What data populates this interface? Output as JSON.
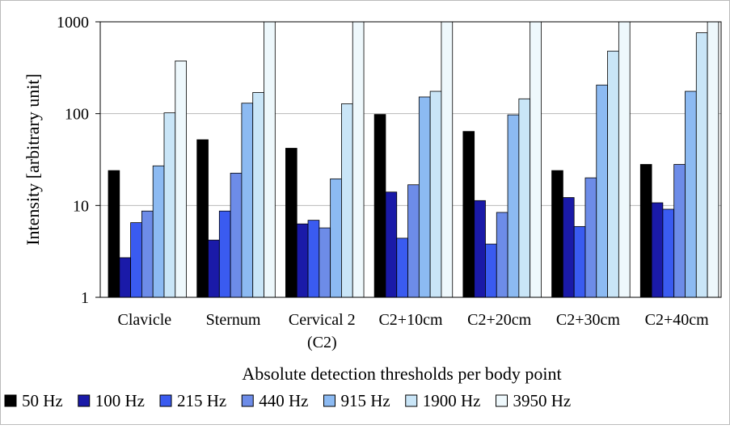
{
  "chart_data": {
    "type": "bar",
    "title": "",
    "xlabel": "Absolute detection thresholds per body point",
    "ylabel": "Intensity [arbitrary unit]",
    "yscale": "log",
    "ylim": [
      1,
      1000
    ],
    "yticks": [
      "1",
      "10",
      "100",
      "1000"
    ],
    "grid": "horizontal major gridlines",
    "legend_position": "bottom",
    "categories": [
      [
        "Clavicle"
      ],
      [
        "Sternum"
      ],
      [
        "Cervical 2",
        "(C2)"
      ],
      [
        "C2+10cm"
      ],
      [
        "C2+20cm"
      ],
      [
        "C2+30cm"
      ],
      [
        "C2+40cm"
      ]
    ],
    "series": [
      {
        "name": "50 Hz",
        "color": "#000000",
        "values": [
          24,
          52,
          42,
          98,
          64,
          24,
          28
        ]
      },
      {
        "name": "100 Hz",
        "color": "#1a1aa8",
        "values": [
          2.7,
          4.2,
          6.3,
          14,
          11.3,
          12.2,
          10.7
        ]
      },
      {
        "name": "215 Hz",
        "color": "#3a5bf0",
        "values": [
          6.5,
          8.7,
          6.9,
          4.4,
          3.8,
          5.9,
          9.1
        ]
      },
      {
        "name": "440 Hz",
        "color": "#6d8ce8",
        "values": [
          8.7,
          22.5,
          5.7,
          16.8,
          8.4,
          20,
          28
        ]
      },
      {
        "name": "915 Hz",
        "color": "#8cbaf2",
        "values": [
          27,
          130,
          19.5,
          152,
          97,
          205,
          175
        ]
      },
      {
        "name": "1900 Hz",
        "color": "#c9e5f7",
        "values": [
          102,
          170,
          128,
          175,
          145,
          480,
          760
        ]
      },
      {
        "name": "3950 Hz",
        "color": "#eef8fc",
        "values": [
          375,
          1000,
          1000,
          1000,
          1000,
          1000,
          1000
        ]
      }
    ]
  }
}
